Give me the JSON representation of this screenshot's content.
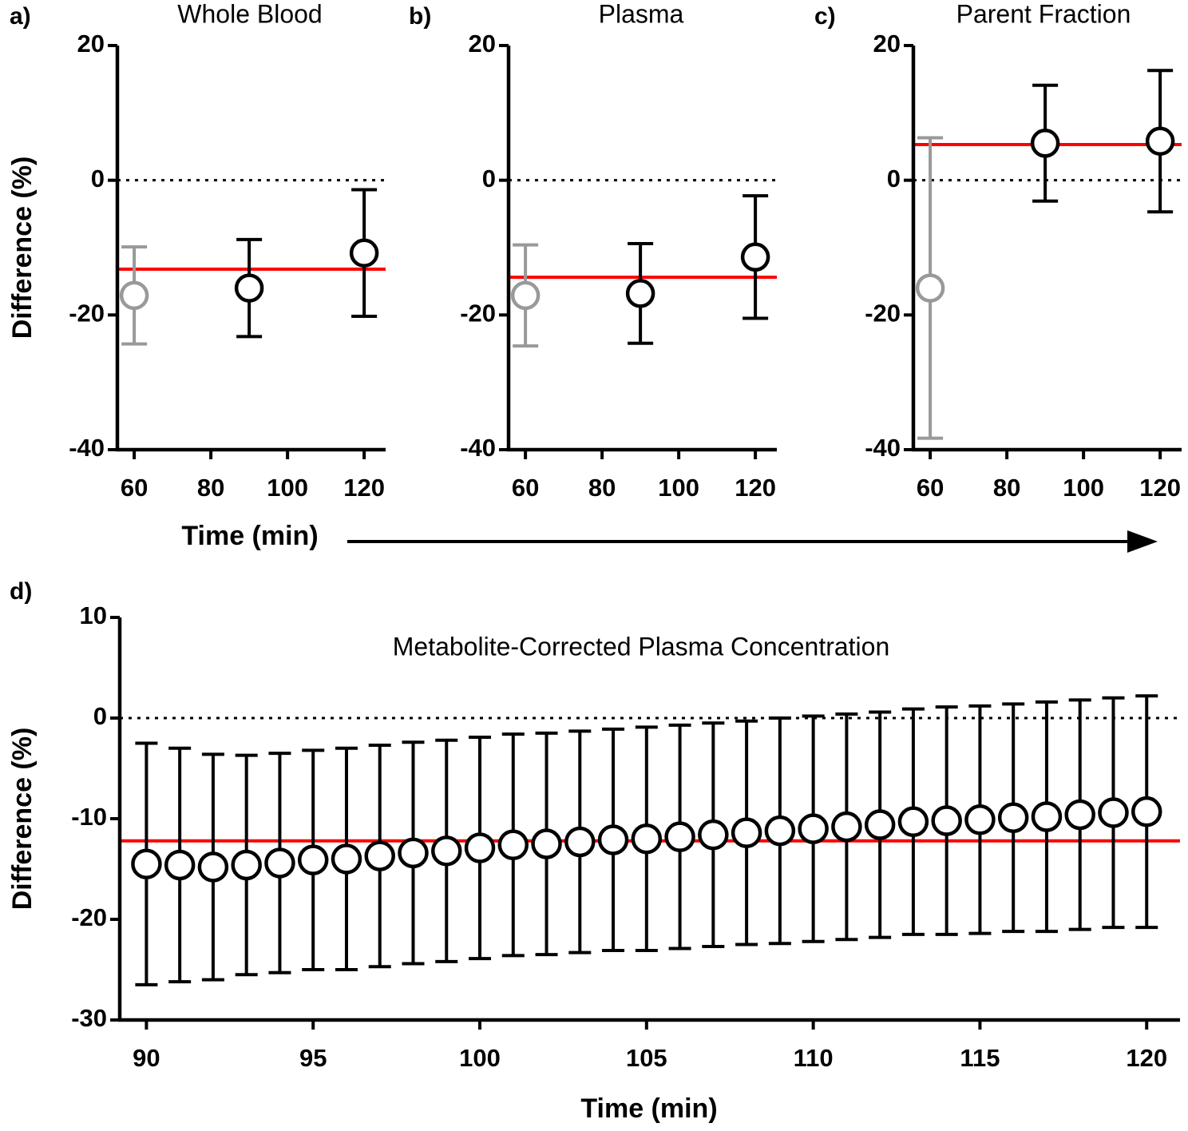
{
  "chart_data": [
    {
      "type": "scatter",
      "panel_label": "a)",
      "title": "Whole Blood",
      "y_label": "Difference (%)",
      "x_label": "Time (min)",
      "x": [
        60,
        90,
        120
      ],
      "values": [
        -17.1,
        -16.0,
        -10.8
      ],
      "errors": [
        7.2,
        7.2,
        9.4
      ],
      "colors": [
        "#999999",
        "#000000",
        "#000000"
      ],
      "mean_line": -13.2,
      "mean_line_color": "#ff0000",
      "zero_line": true,
      "xlim": [
        55.6,
        125.6
      ],
      "ylim": [
        -40,
        20
      ],
      "xticks": [
        60,
        80,
        100,
        120
      ],
      "yticks": [
        -40,
        -20,
        0,
        20
      ]
    },
    {
      "type": "scatter",
      "panel_label": "b)",
      "title": "Plasma",
      "x": [
        60,
        90,
        120
      ],
      "values": [
        -17.1,
        -16.8,
        -11.4
      ],
      "errors": [
        7.5,
        7.4,
        9.1
      ],
      "colors": [
        "#999999",
        "#000000",
        "#000000"
      ],
      "mean_line": -14.4,
      "mean_line_color": "#ff0000",
      "zero_line": true,
      "xlim": [
        55.6,
        125.6
      ],
      "ylim": [
        -40,
        20
      ],
      "xticks": [
        60,
        80,
        100,
        120
      ],
      "yticks": [
        -40,
        -20,
        0,
        20
      ]
    },
    {
      "type": "scatter",
      "panel_label": "c)",
      "title": "Parent Fraction",
      "x": [
        60,
        90,
        120
      ],
      "values": [
        -16.0,
        5.5,
        5.8
      ],
      "errors": [
        22.3,
        8.6,
        10.5
      ],
      "colors": [
        "#999999",
        "#000000",
        "#000000"
      ],
      "mean_line": 5.3,
      "mean_line_color": "#ff0000",
      "zero_line": true,
      "xlim": [
        55.6,
        125.6
      ],
      "ylim": [
        -40,
        20
      ],
      "xticks": [
        60,
        80,
        100,
        120
      ],
      "yticks": [
        -40,
        -20,
        0,
        20
      ]
    },
    {
      "type": "scatter",
      "panel_label": "d)",
      "title": "Metabolite-Corrected Plasma Concentration",
      "y_label": "Difference (%)",
      "x_label": "Time (min)",
      "x": [
        90,
        91,
        92,
        93,
        94,
        95,
        96,
        97,
        98,
        99,
        100,
        101,
        102,
        103,
        104,
        105,
        106,
        107,
        108,
        109,
        110,
        111,
        112,
        113,
        114,
        115,
        116,
        117,
        118,
        119,
        120
      ],
      "values": [
        -14.5,
        -14.6,
        -14.8,
        -14.6,
        -14.4,
        -14.1,
        -14.0,
        -13.7,
        -13.4,
        -13.2,
        -12.9,
        -12.6,
        -12.5,
        -12.3,
        -12.1,
        -12.0,
        -11.8,
        -11.6,
        -11.4,
        -11.2,
        -11.0,
        -10.8,
        -10.6,
        -10.3,
        -10.2,
        -10.1,
        -9.9,
        -9.8,
        -9.6,
        -9.4,
        -9.3
      ],
      "errors": [
        12.0,
        11.6,
        11.2,
        10.9,
        10.9,
        10.9,
        11.0,
        11.0,
        11.0,
        11.0,
        11.0,
        11.0,
        11.0,
        11.0,
        11.0,
        11.1,
        11.1,
        11.1,
        11.1,
        11.2,
        11.2,
        11.2,
        11.2,
        11.2,
        11.3,
        11.3,
        11.3,
        11.4,
        11.4,
        11.4,
        11.5
      ],
      "color": "#000000",
      "mean_line": -12.2,
      "mean_line_color": "#ff0000",
      "zero_line": true,
      "xlim": [
        89.2,
        121
      ],
      "ylim": [
        -30,
        10
      ],
      "xticks": [
        90,
        95,
        100,
        105,
        110,
        115,
        120
      ],
      "yticks": [
        -30,
        -20,
        -10,
        0,
        10
      ]
    }
  ]
}
